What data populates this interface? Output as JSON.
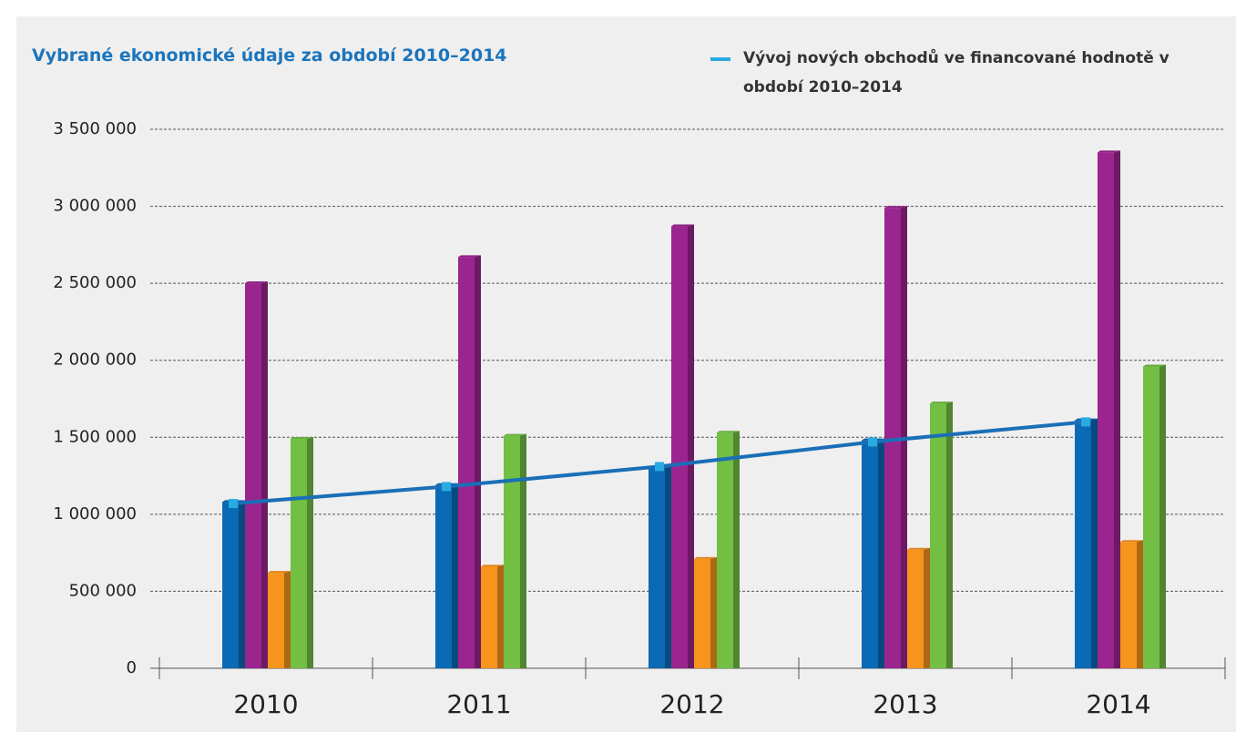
{
  "chart_data": {
    "type": "bar",
    "title": "Vybrané ekonomické údaje za období 2010–2014",
    "categories": [
      "2010",
      "2011",
      "2012",
      "2013",
      "2014"
    ],
    "series": [
      {
        "color": "#0a6ab5",
        "values": [
          1080000,
          1190000,
          1300000,
          1480000,
          1610000
        ]
      },
      {
        "color": "#9b258f",
        "values": [
          2500000,
          2670000,
          2870000,
          2990000,
          3350000
        ]
      },
      {
        "color": "#f7941d",
        "values": [
          620000,
          660000,
          710000,
          770000,
          820000
        ]
      },
      {
        "color": "#72bf44",
        "values": [
          1490000,
          1510000,
          1530000,
          1720000,
          1960000
        ]
      },
      {
        "type": "line",
        "name": "Vývoj nových obchodů ve financované hodnotě v období 2010–2014",
        "color": "#1a6fb7",
        "marker_color": "#29abe2",
        "values": [
          1070000,
          1180000,
          1310000,
          1470000,
          1600000
        ]
      }
    ],
    "ylim": [
      0,
      3500000
    ],
    "yticks": [
      0,
      {
        "value": 500000,
        "label": "500 000"
      },
      {
        "value": 1000000,
        "label": "1 000 000"
      },
      {
        "value": 1500000,
        "label": "1 500 000"
      },
      {
        "value": 2000000,
        "label": "2 000 000"
      },
      {
        "value": 2500000,
        "label": "2 500 000"
      },
      {
        "value": 3000000,
        "label": "3 000 000"
      },
      {
        "value": 3500000,
        "label": "3 500 000"
      }
    ],
    "grid": true
  }
}
